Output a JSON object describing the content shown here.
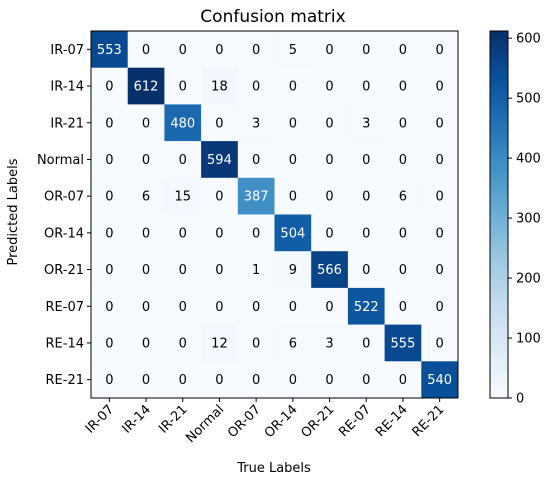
{
  "chart_data": {
    "type": "heatmap",
    "title": "Confusion matrix",
    "xlabel": "True Labels",
    "ylabel": "Predicted Labels",
    "x_categories": [
      "IR-07",
      "IR-14",
      "IR-21",
      "Normal",
      "OR-07",
      "OR-14",
      "OR-21",
      "RE-07",
      "RE-14",
      "RE-21"
    ],
    "y_categories": [
      "IR-07",
      "IR-14",
      "IR-21",
      "Normal",
      "OR-07",
      "OR-14",
      "OR-21",
      "RE-07",
      "RE-14",
      "RE-21"
    ],
    "values": [
      [
        553,
        0,
        0,
        0,
        0,
        5,
        0,
        0,
        0,
        0
      ],
      [
        0,
        612,
        0,
        18,
        0,
        0,
        0,
        0,
        0,
        0
      ],
      [
        0,
        0,
        480,
        0,
        3,
        0,
        0,
        3,
        0,
        0
      ],
      [
        0,
        0,
        0,
        594,
        0,
        0,
        0,
        0,
        0,
        0
      ],
      [
        0,
        6,
        15,
        0,
        387,
        0,
        0,
        0,
        6,
        0
      ],
      [
        0,
        0,
        0,
        0,
        0,
        504,
        0,
        0,
        0,
        0
      ],
      [
        0,
        0,
        0,
        0,
        1,
        9,
        566,
        0,
        0,
        0
      ],
      [
        0,
        0,
        0,
        0,
        0,
        0,
        0,
        522,
        0,
        0
      ],
      [
        0,
        0,
        0,
        12,
        0,
        6,
        3,
        0,
        555,
        0
      ],
      [
        0,
        0,
        0,
        0,
        0,
        0,
        0,
        0,
        0,
        540
      ]
    ],
    "colorbar": {
      "ticks": [
        0,
        100,
        200,
        300,
        400,
        500,
        600
      ],
      "range": [
        0,
        612
      ],
      "colormap": "Blues"
    },
    "grid": false,
    "colors": {
      "low": "#f7fbff",
      "high": "#08306b",
      "text_dark": "#000000",
      "text_light": "#ffffff"
    }
  }
}
